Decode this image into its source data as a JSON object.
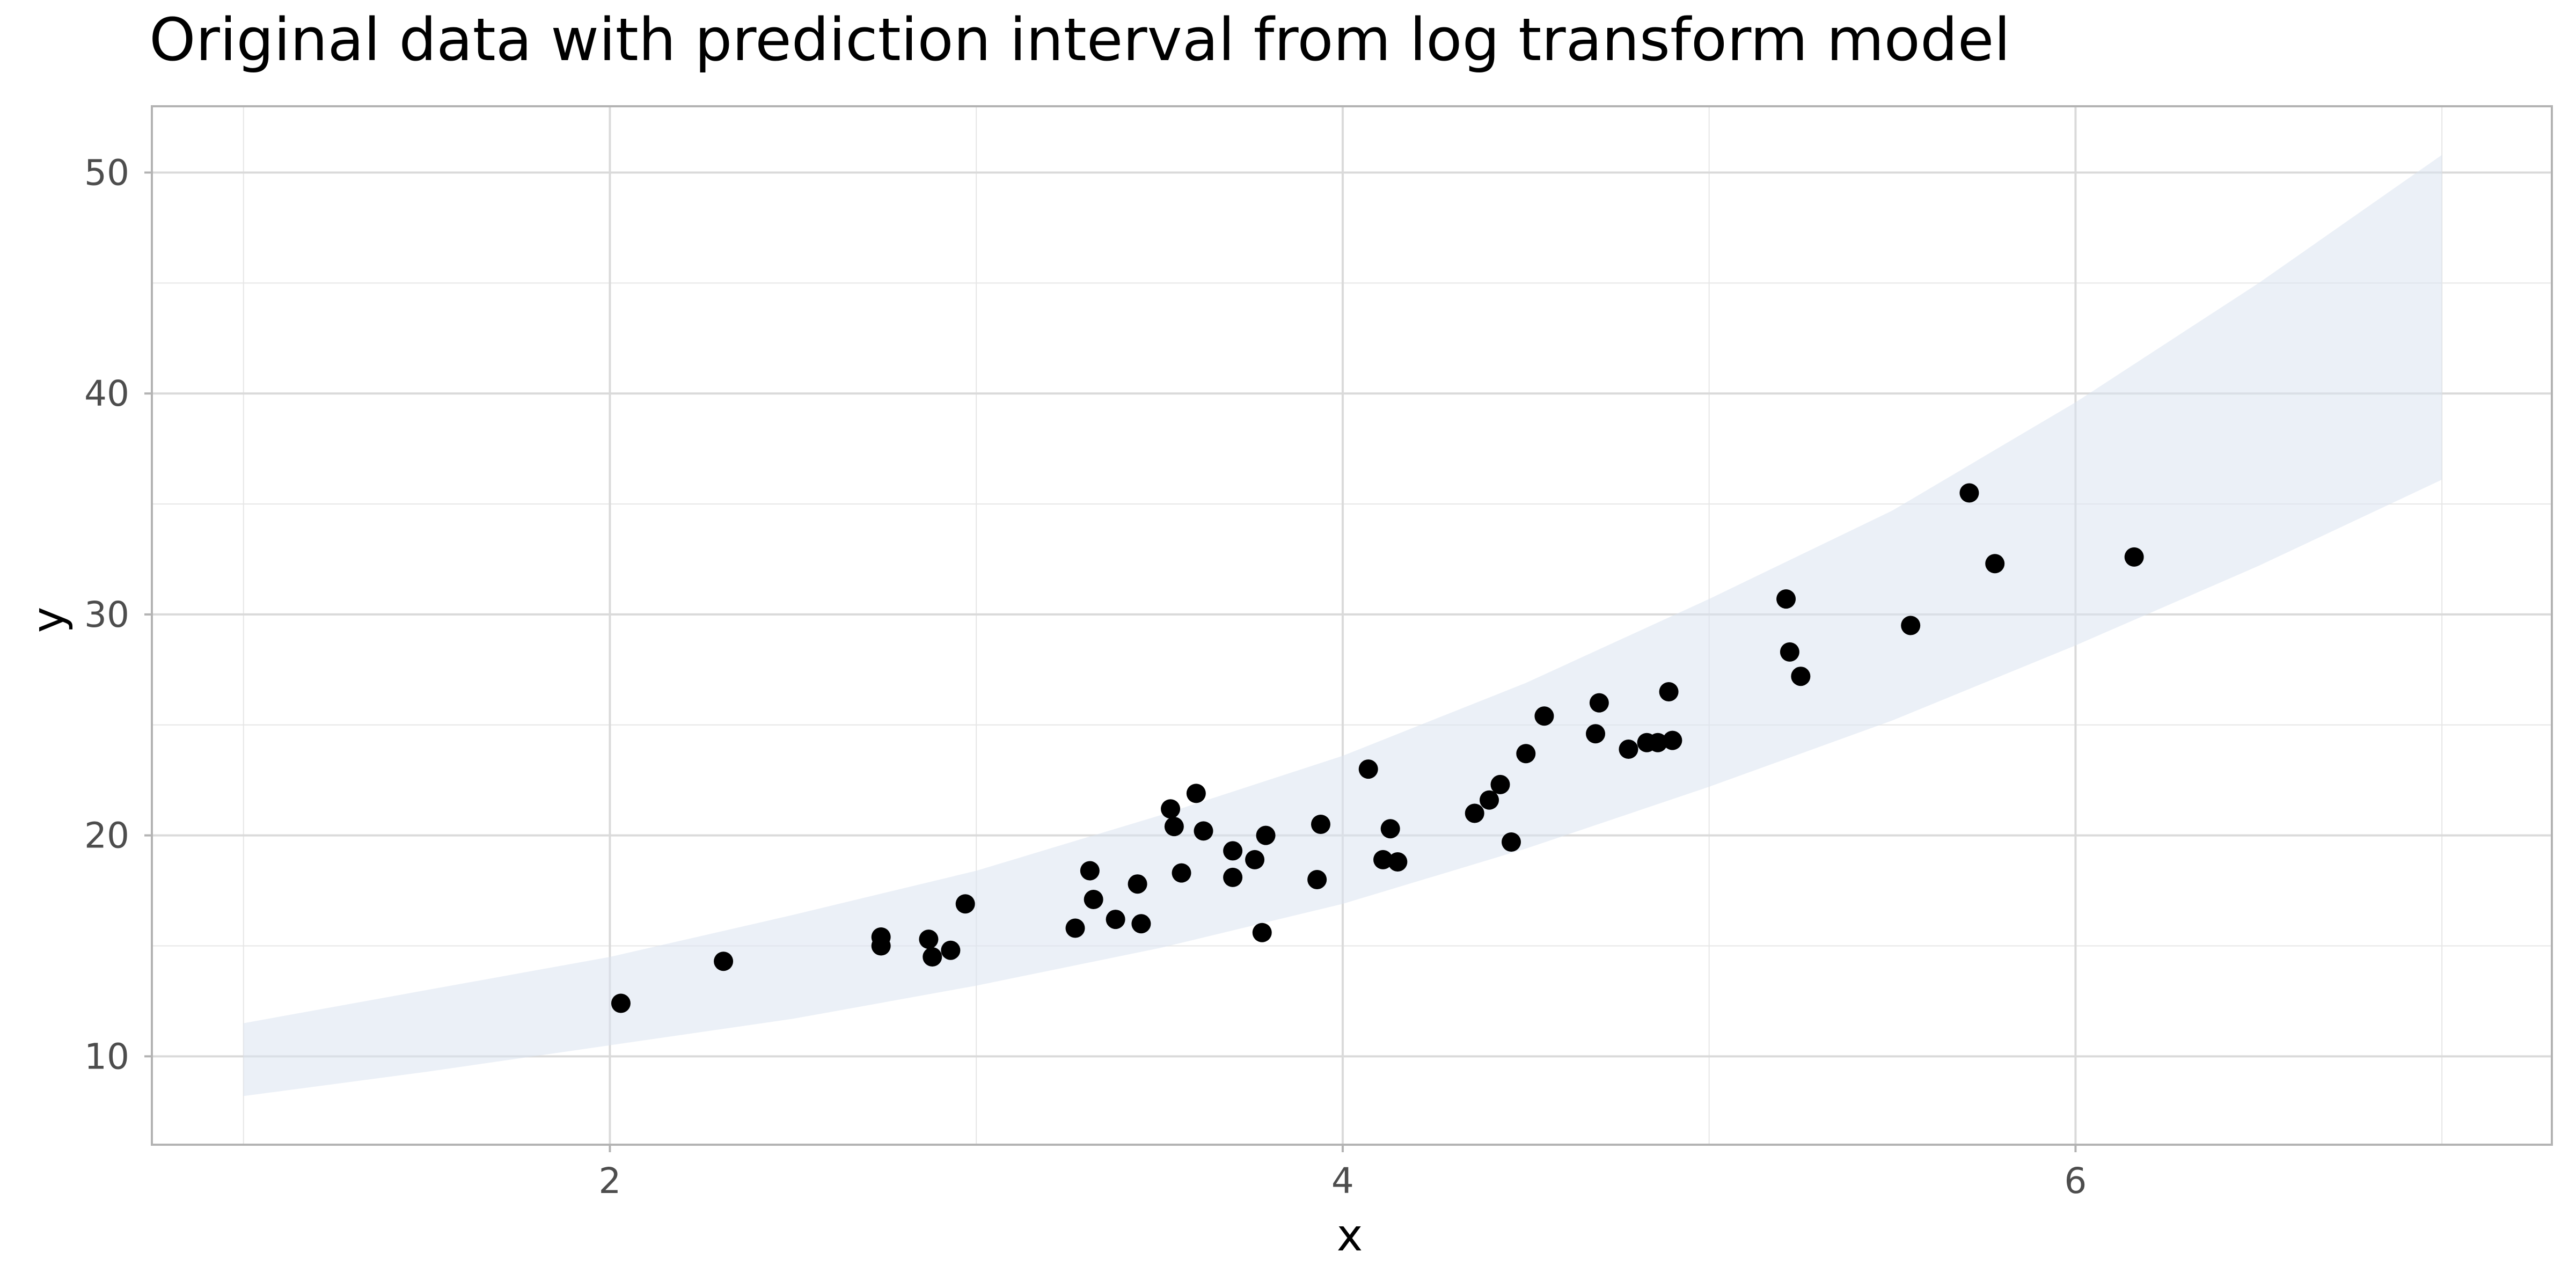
{
  "chart_data": {
    "type": "scatter",
    "title": "Original data with prediction interval from log transform model",
    "xlabel": "x",
    "ylabel": "y",
    "xlim": [
      0.75,
      7.3
    ],
    "ylim": [
      6.0,
      53.0
    ],
    "x_ticks": [
      {
        "value": 2,
        "label": "2"
      },
      {
        "value": 4,
        "label": "4"
      },
      {
        "value": 6,
        "label": "6"
      }
    ],
    "y_ticks": [
      {
        "value": 10,
        "label": "10"
      },
      {
        "value": 20,
        "label": "20"
      },
      {
        "value": 30,
        "label": "30"
      },
      {
        "value": 40,
        "label": "40"
      },
      {
        "value": 50,
        "label": "50"
      }
    ],
    "x_minor_gridlines": [
      1,
      3,
      5,
      7
    ],
    "y_minor_gridlines": [
      15,
      25,
      35,
      45
    ],
    "grid": true,
    "background": "#ffffff",
    "gridline_color": "#e6e6e6",
    "panel_border_color": "#b3b3b3",
    "point_color": "#000000",
    "band_color": "#dbe4f1",
    "band_opacity": 0.55,
    "prediction_interval": {
      "x": [
        1.0,
        1.5,
        2.0,
        2.5,
        3.0,
        3.5,
        4.0,
        4.5,
        5.0,
        5.5,
        6.0,
        6.5,
        7.0
      ],
      "lower": [
        8.2,
        9.3,
        10.5,
        11.7,
        13.2,
        14.9,
        16.9,
        19.4,
        22.2,
        25.2,
        28.6,
        32.2,
        36.1
      ],
      "upper": [
        11.5,
        13.0,
        14.5,
        16.4,
        18.4,
        20.9,
        23.6,
        26.9,
        30.7,
        34.7,
        39.6,
        45.0,
        50.8
      ]
    },
    "points": [
      {
        "x": 2.03,
        "y": 12.4
      },
      {
        "x": 2.31,
        "y": 14.3
      },
      {
        "x": 2.74,
        "y": 15.4
      },
      {
        "x": 2.74,
        "y": 15.0
      },
      {
        "x": 2.87,
        "y": 15.3
      },
      {
        "x": 2.88,
        "y": 14.5
      },
      {
        "x": 2.93,
        "y": 14.8
      },
      {
        "x": 2.97,
        "y": 16.9
      },
      {
        "x": 3.27,
        "y": 15.8
      },
      {
        "x": 3.31,
        "y": 18.4
      },
      {
        "x": 3.32,
        "y": 17.1
      },
      {
        "x": 3.38,
        "y": 16.2
      },
      {
        "x": 3.44,
        "y": 17.8
      },
      {
        "x": 3.45,
        "y": 16.0
      },
      {
        "x": 3.53,
        "y": 21.2
      },
      {
        "x": 3.54,
        "y": 20.4
      },
      {
        "x": 3.56,
        "y": 18.3
      },
      {
        "x": 3.6,
        "y": 21.9
      },
      {
        "x": 3.62,
        "y": 20.2
      },
      {
        "x": 3.7,
        "y": 19.3
      },
      {
        "x": 3.7,
        "y": 18.1
      },
      {
        "x": 3.76,
        "y": 18.9
      },
      {
        "x": 3.78,
        "y": 15.6
      },
      {
        "x": 3.79,
        "y": 20.0
      },
      {
        "x": 3.93,
        "y": 18.0
      },
      {
        "x": 3.94,
        "y": 20.5
      },
      {
        "x": 4.07,
        "y": 23.0
      },
      {
        "x": 4.11,
        "y": 18.9
      },
      {
        "x": 4.13,
        "y": 20.3
      },
      {
        "x": 4.15,
        "y": 18.8
      },
      {
        "x": 4.36,
        "y": 21.0
      },
      {
        "x": 4.4,
        "y": 21.6
      },
      {
        "x": 4.43,
        "y": 22.3
      },
      {
        "x": 4.46,
        "y": 19.7
      },
      {
        "x": 4.5,
        "y": 23.7
      },
      {
        "x": 4.55,
        "y": 25.4
      },
      {
        "x": 4.69,
        "y": 24.6
      },
      {
        "x": 4.7,
        "y": 26.0
      },
      {
        "x": 4.78,
        "y": 23.9
      },
      {
        "x": 4.83,
        "y": 24.2
      },
      {
        "x": 4.86,
        "y": 24.2
      },
      {
        "x": 4.89,
        "y": 26.5
      },
      {
        "x": 4.9,
        "y": 24.3
      },
      {
        "x": 5.21,
        "y": 30.7
      },
      {
        "x": 5.22,
        "y": 28.3
      },
      {
        "x": 5.25,
        "y": 27.2
      },
      {
        "x": 5.55,
        "y": 29.5
      },
      {
        "x": 5.71,
        "y": 35.5
      },
      {
        "x": 5.78,
        "y": 32.3
      },
      {
        "x": 6.16,
        "y": 32.6
      }
    ]
  }
}
